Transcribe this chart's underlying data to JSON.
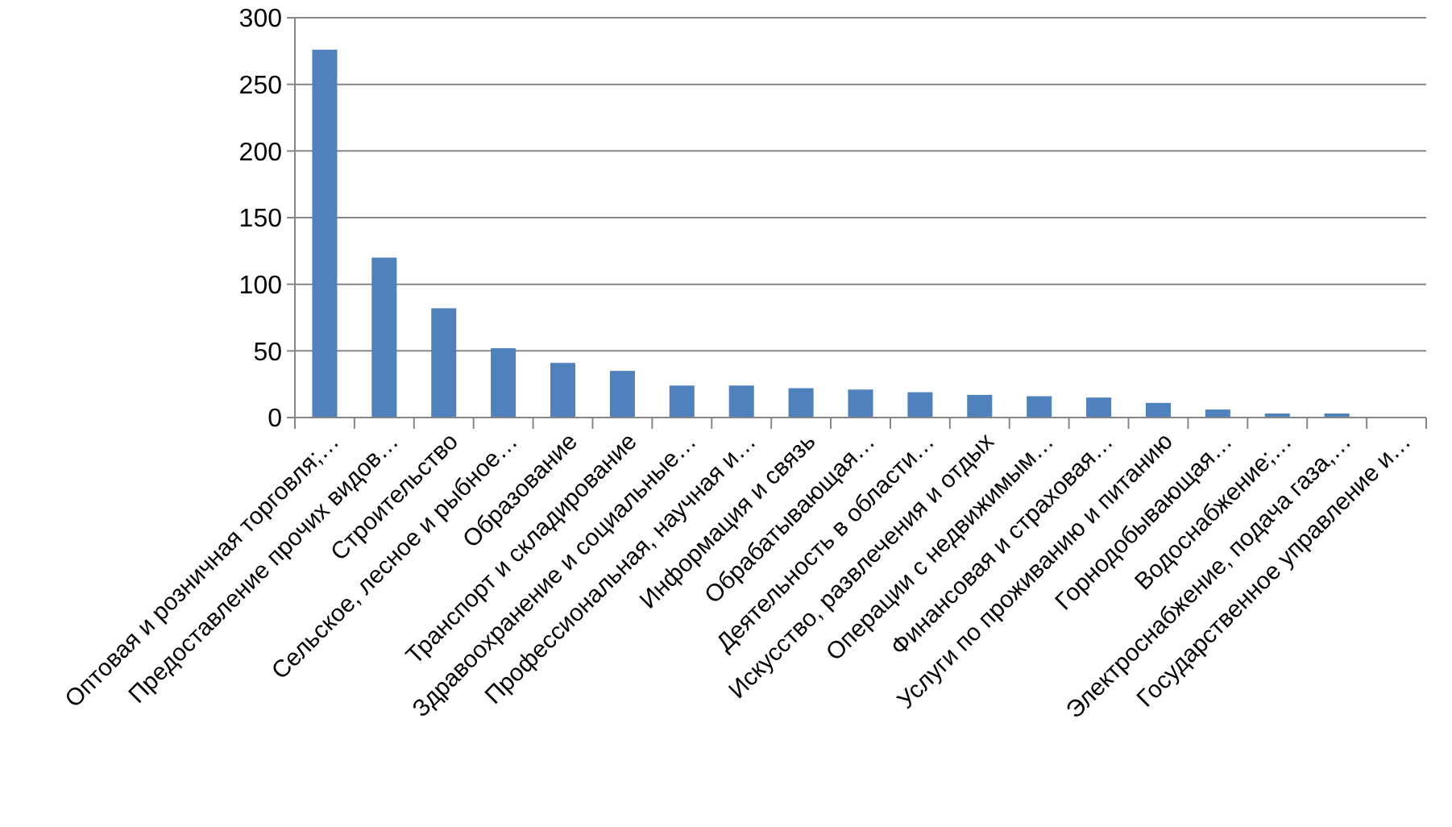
{
  "chart_data": {
    "type": "bar",
    "categories": [
      "Оптовая и розничная торговля;…",
      "Предоставление прочих видов…",
      "Строительство",
      "Сельское, лесное и рыбное…",
      "Образование",
      "Транспорт и складирование",
      "Здравоохранение и социальные…",
      "Профессиональная, научная и…",
      "Информация и связь",
      "Обрабатывающая…",
      "Деятельность в области…",
      "Искусство, развлечения и отдых",
      "Операции с недвижимым…",
      "Финансовая и страховая…",
      "Услуги по проживанию и питанию",
      "Горнодобывающая…",
      "Водоснабжение;…",
      "Электроснабжение, подача газа,…",
      "Государственное управление и…"
    ],
    "values": [
      276,
      120,
      82,
      52,
      41,
      35,
      24,
      24,
      22,
      21,
      19,
      17,
      16,
      15,
      11,
      6,
      3,
      3,
      0
    ],
    "color": "#4f81bd",
    "ylim": [
      0,
      300
    ],
    "yticks": [
      0,
      50,
      100,
      150,
      200,
      250,
      300
    ],
    "grid": "y"
  }
}
